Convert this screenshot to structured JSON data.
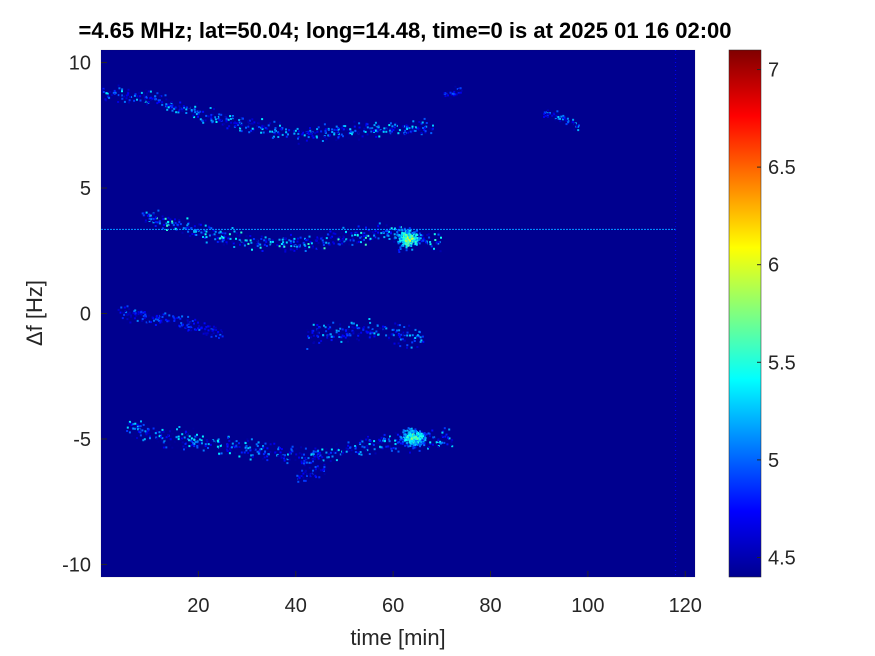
{
  "chart_data": {
    "type": "heatmap",
    "title": "=4.65 MHz;  lat=50.04; long=14.48, time=0 is at 2025 01 16 02:00",
    "xlabel": "time [min]",
    "ylabel": "Δf [Hz]",
    "xlim": [
      0,
      122
    ],
    "ylim": [
      -10.5,
      10.5
    ],
    "xticks": [
      20,
      40,
      60,
      80,
      100,
      120
    ],
    "yticks": [
      10,
      5,
      0,
      -5,
      -10
    ],
    "colorbar": {
      "range": [
        4.4,
        7.1
      ],
      "ticks": [
        7,
        6.5,
        6,
        5.5,
        5,
        4.5
      ],
      "colormap": "jet"
    },
    "background_value": 4.45,
    "features": [
      {
        "kind": "trace",
        "points": [
          [
            0,
            8.9
          ],
          [
            10,
            8.6
          ],
          [
            20,
            8.0
          ],
          [
            30,
            7.5
          ],
          [
            40,
            7.2
          ],
          [
            50,
            7.3
          ],
          [
            60,
            7.4
          ],
          [
            68,
            7.4
          ]
        ],
        "spread": 0.5,
        "peak": 5.4
      },
      {
        "kind": "trace",
        "points": [
          [
            70,
            8.7
          ],
          [
            74,
            8.9
          ]
        ],
        "spread": 0.3,
        "peak": 5.0
      },
      {
        "kind": "trace",
        "points": [
          [
            90,
            8.0
          ],
          [
            95,
            7.8
          ],
          [
            98,
            7.5
          ]
        ],
        "spread": 0.3,
        "peak": 5.3
      },
      {
        "kind": "trace",
        "points": [
          [
            8,
            4.0
          ],
          [
            15,
            3.6
          ],
          [
            22,
            3.2
          ],
          [
            30,
            2.9
          ],
          [
            40,
            2.8
          ],
          [
            50,
            3.0
          ],
          [
            58,
            3.3
          ],
          [
            65,
            3.0
          ],
          [
            70,
            2.9
          ]
        ],
        "spread": 0.55,
        "peak": 5.6
      },
      {
        "kind": "blob",
        "x": 63,
        "y": 3.0,
        "rx": 4,
        "ry": 0.5,
        "peak": 6.3
      },
      {
        "kind": "line",
        "y": 3.35,
        "x0": 0,
        "x1": 118,
        "value": 5.1
      },
      {
        "kind": "trace",
        "points": [
          [
            3,
            0.1
          ],
          [
            10,
            -0.1
          ],
          [
            18,
            -0.4
          ],
          [
            25,
            -0.8
          ]
        ],
        "spread": 0.4,
        "peak": 5.1
      },
      {
        "kind": "trace",
        "points": [
          [
            42,
            -0.8
          ],
          [
            50,
            -0.7
          ],
          [
            58,
            -0.6
          ],
          [
            66,
            -1.0
          ]
        ],
        "spread": 0.7,
        "peak": 5.3
      },
      {
        "kind": "trace",
        "points": [
          [
            5,
            -4.5
          ],
          [
            15,
            -4.9
          ],
          [
            25,
            -5.2
          ],
          [
            35,
            -5.5
          ],
          [
            42,
            -5.7
          ],
          [
            50,
            -5.4
          ],
          [
            58,
            -5.1
          ],
          [
            66,
            -5.0
          ],
          [
            72,
            -5.0
          ]
        ],
        "spread": 0.6,
        "peak": 5.4
      },
      {
        "kind": "blob",
        "x": 64,
        "y": -4.9,
        "rx": 4.5,
        "ry": 0.45,
        "peak": 6.1
      },
      {
        "kind": "trace",
        "points": [
          [
            40,
            -6.5
          ],
          [
            46,
            -6.2
          ]
        ],
        "spread": 0.4,
        "peak": 5.0
      },
      {
        "kind": "vline",
        "x": 118,
        "value": 4.7
      }
    ]
  },
  "colors": {
    "axis": "#262626"
  }
}
